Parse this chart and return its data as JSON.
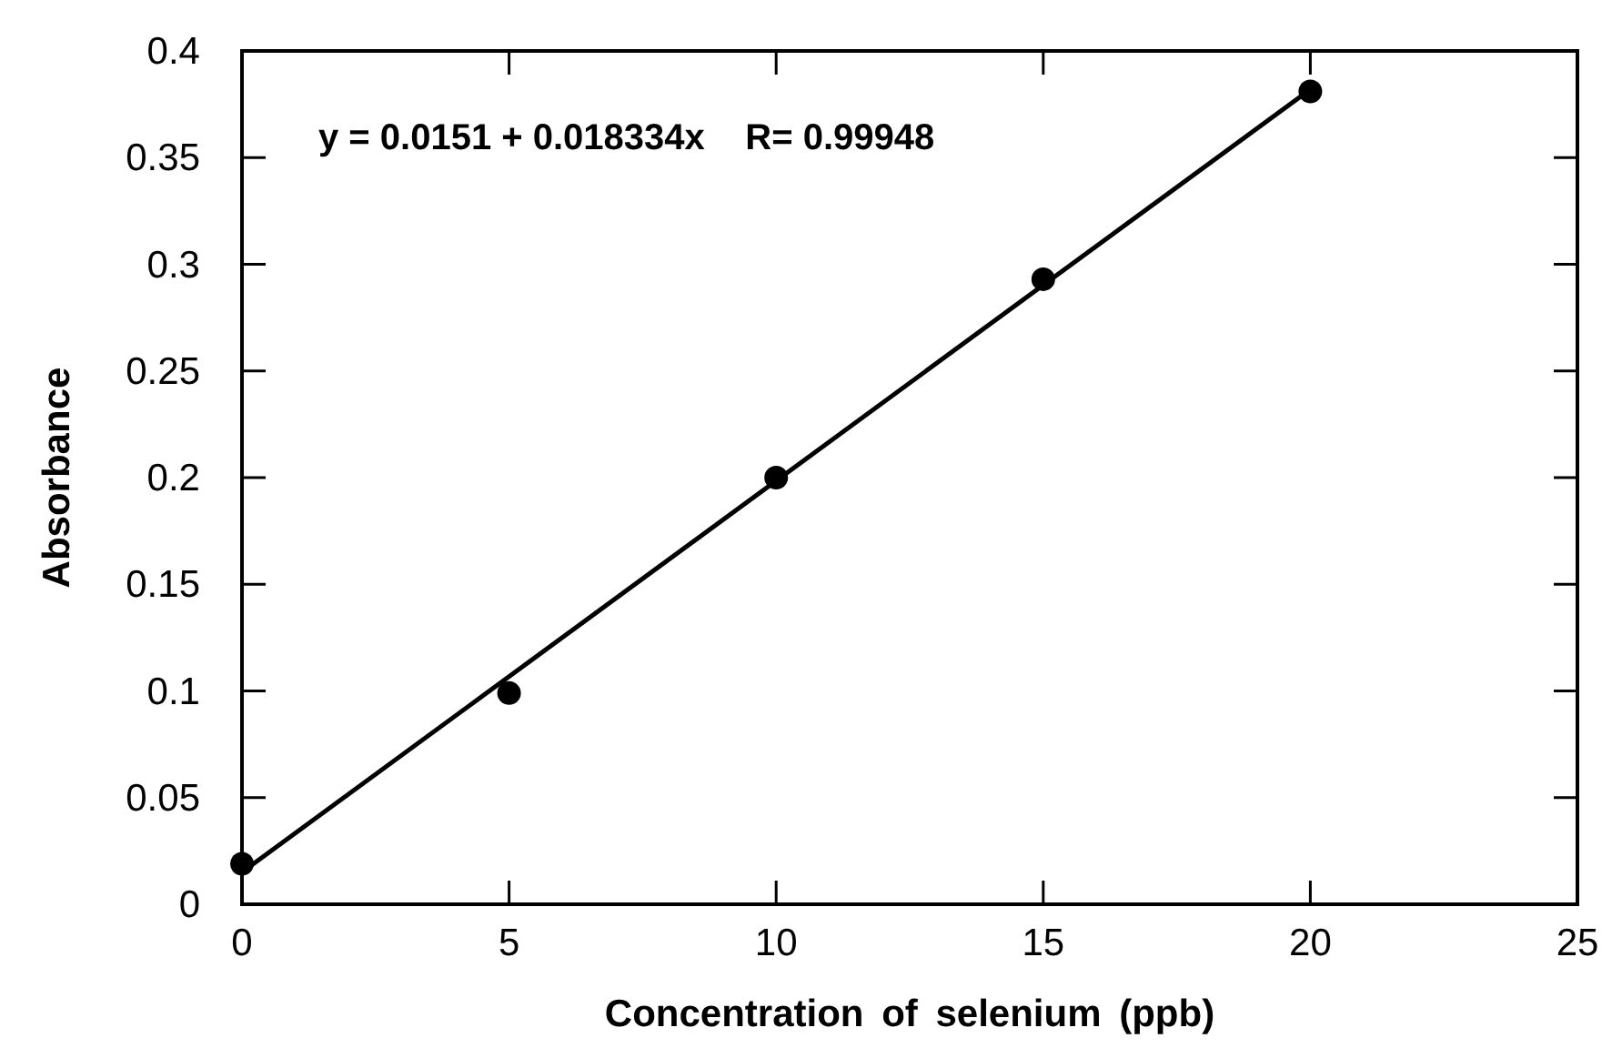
{
  "chart_data": {
    "type": "scatter",
    "xlabel": "Concentration of selenium (ppb)",
    "ylabel": "Absorbance",
    "annotations": [
      "y = 0.0151 + 0.018334x    R= 0.99948"
    ],
    "xlim": [
      0,
      25
    ],
    "xticks": [
      0,
      5,
      10,
      15,
      20,
      25
    ],
    "ylim": [
      0,
      0.4
    ],
    "yticks": [
      0,
      0.05,
      0.1,
      0.15,
      0.2,
      0.25,
      0.3,
      0.35,
      0.4
    ],
    "grid": false,
    "series": [
      {
        "color": "#000000",
        "marker": "circle",
        "x": [
          0,
          5,
          10,
          15,
          20
        ],
        "values": [
          0.019,
          0.099,
          0.2,
          0.293,
          0.381
        ]
      },
      {
        "type": "line",
        "color": "#000000",
        "line_style": "solid",
        "x": [
          0,
          20
        ],
        "values": [
          0.015,
          0.382
        ]
      }
    ]
  }
}
